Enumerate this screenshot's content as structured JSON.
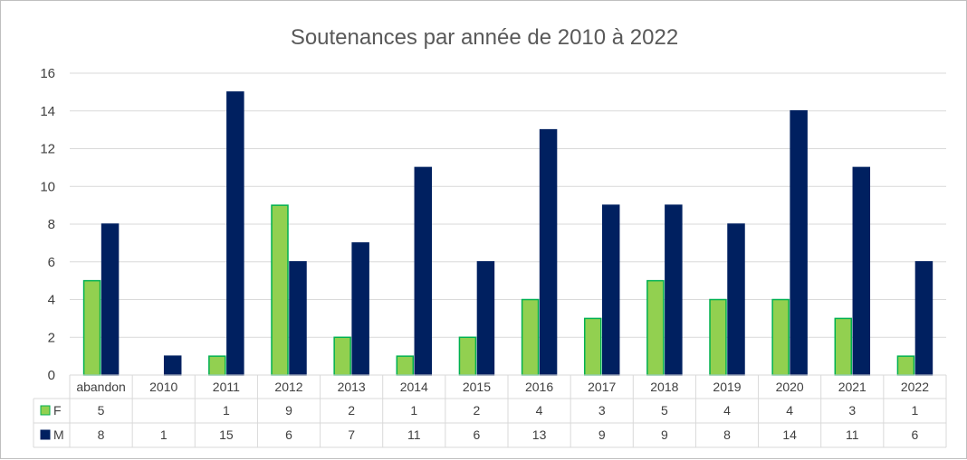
{
  "chart_data": {
    "type": "bar",
    "title": "Soutenances par année de 2010 à 2022",
    "categories": [
      "abandon",
      "2010",
      "2011",
      "2012",
      "2013",
      "2014",
      "2015",
      "2016",
      "2017",
      "2018",
      "2019",
      "2020",
      "2021",
      "2022"
    ],
    "series": [
      {
        "name": "F",
        "color": "#92d050",
        "border": "#00b050",
        "values": [
          5,
          null,
          1,
          9,
          2,
          1,
          2,
          4,
          3,
          5,
          4,
          4,
          3,
          1
        ]
      },
      {
        "name": "M",
        "color": "#002060",
        "border": "#002060",
        "values": [
          8,
          1,
          15,
          6,
          7,
          11,
          6,
          13,
          9,
          9,
          8,
          14,
          11,
          6
        ]
      }
    ],
    "yticks": [
      "0",
      "2",
      "4",
      "6",
      "8",
      "10",
      "12",
      "14",
      "16"
    ],
    "ylim": [
      0,
      16
    ],
    "grid": true,
    "legend": "data-table"
  }
}
